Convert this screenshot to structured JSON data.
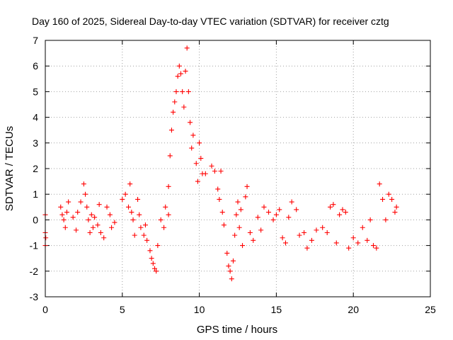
{
  "chart_data": {
    "type": "scatter",
    "title": "Day 160 of 2025, Sidereal Day-to-day VTEC variation (SDTVAR) for receiver cztg",
    "xlabel": "GPS time / hours",
    "ylabel": "SDTVAR / TECUs",
    "xlim": [
      0,
      25
    ],
    "ylim": [
      -3,
      7
    ],
    "xticks": [
      "0",
      "5",
      "10",
      "15",
      "20",
      "25"
    ],
    "yticks": [
      "-3",
      "-2",
      "-1",
      "0",
      "1",
      "2",
      "3",
      "4",
      "5",
      "6",
      "7"
    ],
    "grid": true,
    "marker": "+",
    "color": "#ff0000",
    "series": [
      {
        "name": "SDTVAR",
        "points": [
          [
            0.0,
            0.2
          ],
          [
            0.0,
            -0.5
          ],
          [
            0.0,
            -1.0
          ],
          [
            0.03,
            -0.7
          ],
          [
            1.0,
            0.5
          ],
          [
            1.1,
            0.2
          ],
          [
            1.2,
            0.0
          ],
          [
            1.3,
            -0.3
          ],
          [
            1.4,
            0.3
          ],
          [
            1.5,
            0.7
          ],
          [
            1.8,
            0.1
          ],
          [
            2.0,
            -0.4
          ],
          [
            2.1,
            0.3
          ],
          [
            2.3,
            0.7
          ],
          [
            2.5,
            1.4
          ],
          [
            2.6,
            1.0
          ],
          [
            2.7,
            0.5
          ],
          [
            2.8,
            0.0
          ],
          [
            2.9,
            -0.5
          ],
          [
            3.0,
            0.2
          ],
          [
            3.1,
            -0.3
          ],
          [
            3.2,
            0.1
          ],
          [
            3.4,
            -0.2
          ],
          [
            3.5,
            0.6
          ],
          [
            3.6,
            -0.5
          ],
          [
            3.8,
            -0.7
          ],
          [
            4.0,
            0.5
          ],
          [
            4.2,
            0.2
          ],
          [
            4.3,
            -0.3
          ],
          [
            4.5,
            -0.1
          ],
          [
            5.0,
            0.8
          ],
          [
            5.2,
            1.0
          ],
          [
            5.4,
            0.5
          ],
          [
            5.5,
            1.4
          ],
          [
            5.6,
            0.3
          ],
          [
            5.7,
            0.0
          ],
          [
            5.8,
            -0.6
          ],
          [
            6.0,
            0.8
          ],
          [
            6.1,
            0.2
          ],
          [
            6.2,
            -0.3
          ],
          [
            6.4,
            -0.6
          ],
          [
            6.5,
            -0.2
          ],
          [
            6.6,
            -0.8
          ],
          [
            6.8,
            -1.2
          ],
          [
            6.9,
            -1.5
          ],
          [
            7.0,
            -1.7
          ],
          [
            7.1,
            -1.9
          ],
          [
            7.2,
            -2.0
          ],
          [
            7.3,
            -1.0
          ],
          [
            7.5,
            0.0
          ],
          [
            7.7,
            -0.3
          ],
          [
            7.8,
            0.5
          ],
          [
            8.0,
            1.3
          ],
          [
            8.0,
            0.2
          ],
          [
            8.1,
            2.5
          ],
          [
            8.2,
            3.5
          ],
          [
            8.3,
            4.2
          ],
          [
            8.4,
            4.6
          ],
          [
            8.5,
            5.0
          ],
          [
            8.6,
            5.6
          ],
          [
            8.7,
            6.0
          ],
          [
            8.8,
            5.7
          ],
          [
            8.9,
            5.0
          ],
          [
            9.0,
            4.4
          ],
          [
            9.1,
            5.8
          ],
          [
            9.2,
            6.7
          ],
          [
            9.3,
            5.0
          ],
          [
            9.4,
            3.8
          ],
          [
            9.5,
            2.8
          ],
          [
            9.6,
            3.3
          ],
          [
            9.8,
            2.2
          ],
          [
            9.9,
            1.5
          ],
          [
            10.0,
            3.0
          ],
          [
            10.1,
            2.4
          ],
          [
            10.2,
            1.8
          ],
          [
            10.4,
            1.8
          ],
          [
            10.8,
            2.1
          ],
          [
            11.0,
            1.9
          ],
          [
            11.2,
            1.2
          ],
          [
            11.3,
            0.8
          ],
          [
            11.4,
            1.9
          ],
          [
            11.5,
            0.3
          ],
          [
            11.6,
            -0.2
          ],
          [
            11.8,
            -1.3
          ],
          [
            11.9,
            -1.8
          ],
          [
            12.0,
            -2.0
          ],
          [
            12.1,
            -2.3
          ],
          [
            12.2,
            -1.6
          ],
          [
            12.3,
            -0.6
          ],
          [
            12.4,
            0.2
          ],
          [
            12.5,
            0.7
          ],
          [
            12.6,
            -0.3
          ],
          [
            12.7,
            0.4
          ],
          [
            12.8,
            -1.0
          ],
          [
            13.0,
            0.9
          ],
          [
            13.1,
            1.3
          ],
          [
            13.3,
            -0.5
          ],
          [
            13.5,
            -0.8
          ],
          [
            13.8,
            0.1
          ],
          [
            14.0,
            -0.4
          ],
          [
            14.2,
            0.5
          ],
          [
            14.5,
            0.3
          ],
          [
            14.8,
            0.0
          ],
          [
            15.0,
            0.2
          ],
          [
            15.2,
            0.4
          ],
          [
            15.4,
            -0.7
          ],
          [
            15.6,
            -0.9
          ],
          [
            15.8,
            0.1
          ],
          [
            16.0,
            0.7
          ],
          [
            16.3,
            0.4
          ],
          [
            16.5,
            -0.6
          ],
          [
            16.8,
            -0.5
          ],
          [
            17.0,
            -1.1
          ],
          [
            17.3,
            -0.8
          ],
          [
            17.6,
            -0.4
          ],
          [
            18.0,
            -0.3
          ],
          [
            18.3,
            -0.5
          ],
          [
            18.5,
            0.5
          ],
          [
            18.7,
            0.6
          ],
          [
            18.9,
            -0.9
          ],
          [
            19.1,
            0.2
          ],
          [
            19.3,
            0.4
          ],
          [
            19.5,
            0.3
          ],
          [
            19.7,
            -1.1
          ],
          [
            20.0,
            -0.7
          ],
          [
            20.3,
            -0.9
          ],
          [
            20.6,
            -0.3
          ],
          [
            20.9,
            -0.8
          ],
          [
            21.1,
            0.0
          ],
          [
            21.3,
            -1.0
          ],
          [
            21.5,
            -1.1
          ],
          [
            21.7,
            1.4
          ],
          [
            21.9,
            0.8
          ],
          [
            22.1,
            0.0
          ],
          [
            22.3,
            1.0
          ],
          [
            22.5,
            0.8
          ],
          [
            22.7,
            0.3
          ],
          [
            22.8,
            0.5
          ]
        ]
      }
    ]
  }
}
